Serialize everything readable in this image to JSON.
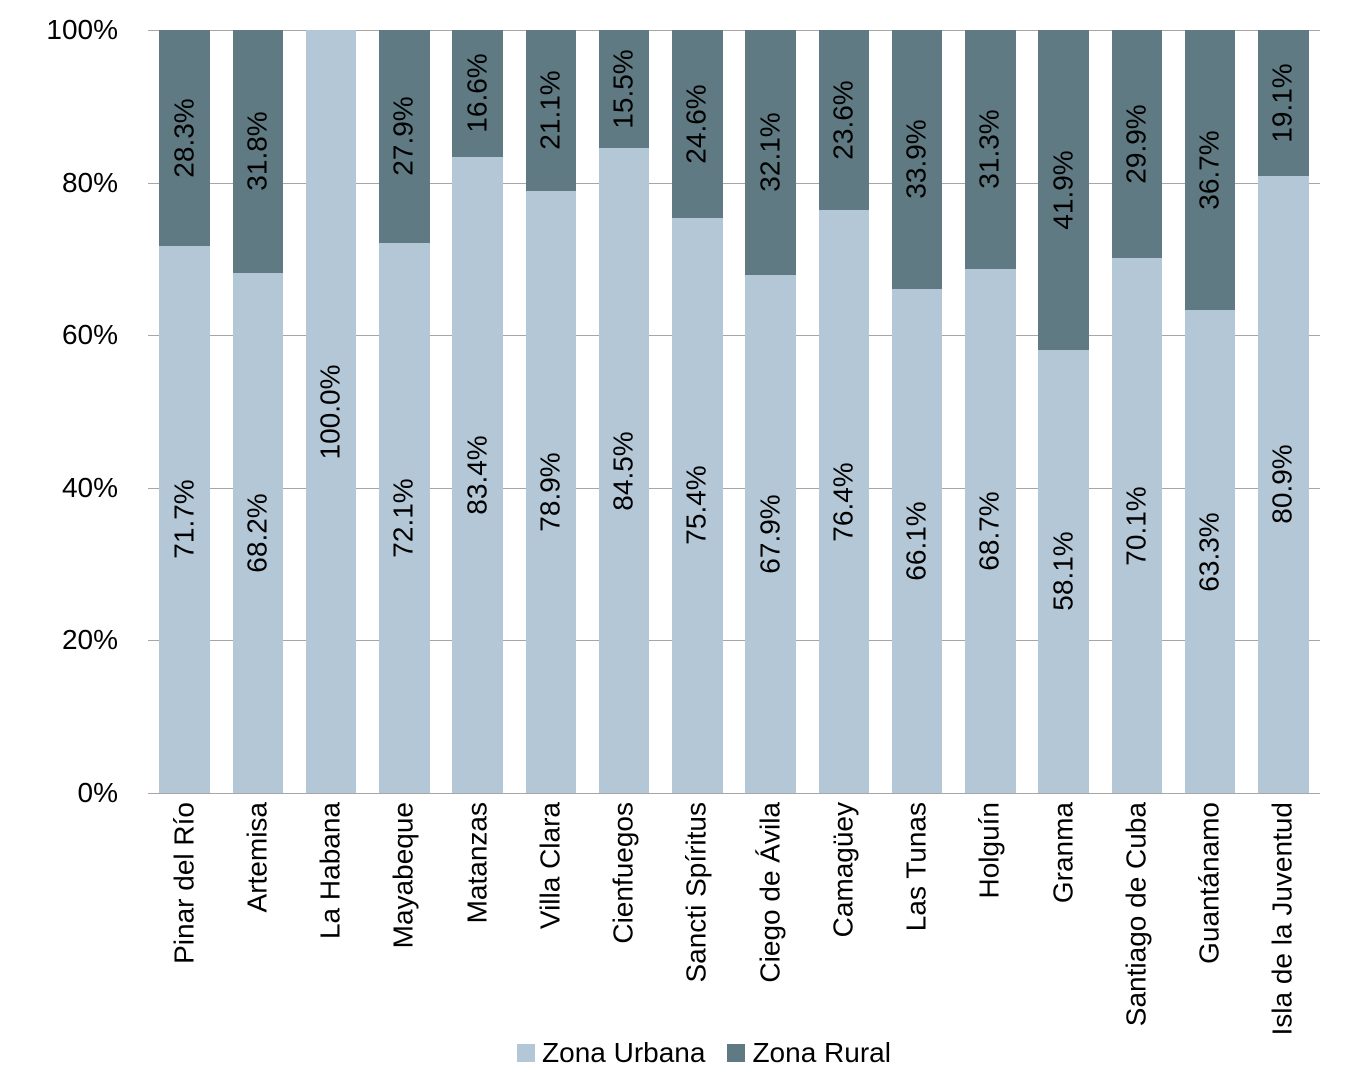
{
  "chart_data": {
    "type": "bar",
    "subtype": "stacked-100-percent",
    "title": "",
    "xlabel": "",
    "ylabel": "",
    "grid": true,
    "gridline_color": "#a6a6a6",
    "legend_position": "bottom",
    "ylim": [
      0,
      100
    ],
    "yticks": [
      "0%",
      "20%",
      "40%",
      "60%",
      "80%",
      "100%"
    ],
    "categories": [
      "Pinar del Río",
      "Artemisa",
      "La Habana",
      "Mayabeque",
      "Matanzas",
      "Villa Clara",
      "Cienfuegos",
      "Sancti Spíritus",
      "Ciego de Ávila",
      "Camagüey",
      "Las Tunas",
      "Holguín",
      "Granma",
      "Santiago de Cuba",
      "Guantánamo",
      "Isla de la Juventud"
    ],
    "series": [
      {
        "name": "Zona Urbana",
        "color": "#b4c7d6",
        "values": [
          71.7,
          68.2,
          100.0,
          72.1,
          83.4,
          78.9,
          84.5,
          75.4,
          67.9,
          76.4,
          66.1,
          68.7,
          58.1,
          70.1,
          63.3,
          80.9
        ],
        "labels": [
          "71.7%",
          "68.2%",
          "100.0%",
          "72.1%",
          "83.4%",
          "78.9%",
          "84.5%",
          "75.4%",
          "67.9%",
          "76.4%",
          "66.1%",
          "68.7%",
          "58.1%",
          "70.1%",
          "63.3%",
          "80.9%"
        ]
      },
      {
        "name": "Zona Rural",
        "color": "#5f7a82",
        "values": [
          28.3,
          31.8,
          0,
          27.9,
          16.6,
          21.1,
          15.5,
          24.6,
          32.1,
          23.6,
          33.9,
          31.3,
          41.9,
          29.9,
          36.7,
          19.1
        ],
        "labels": [
          "28.3%",
          "31.8%",
          "",
          "27.9%",
          "16.6%",
          "21.1%",
          "15.5%",
          "24.6%",
          "32.1%",
          "23.6%",
          "33.9%",
          "31.3%",
          "41.9%",
          "29.9%",
          "36.7%",
          "19.1%"
        ]
      }
    ]
  }
}
